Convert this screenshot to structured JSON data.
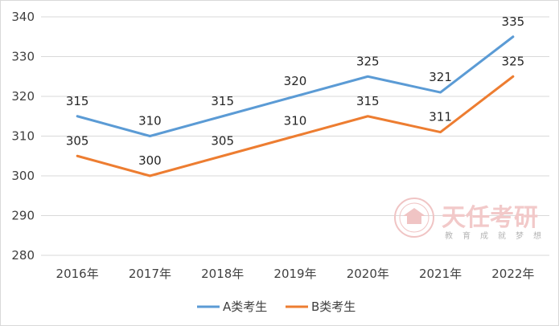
{
  "chart_data": {
    "type": "line",
    "categories": [
      "2016年",
      "2017年",
      "2018年",
      "2019年",
      "2020年",
      "2021年",
      "2022年"
    ],
    "series": [
      {
        "name": "A类考生",
        "values": [
          315,
          310,
          315,
          320,
          325,
          321,
          335
        ],
        "color": "#5b9bd5"
      },
      {
        "name": "B类考生",
        "values": [
          305,
          300,
          305,
          310,
          315,
          311,
          325
        ],
        "color": "#ed7d31"
      }
    ],
    "ylim": [
      280,
      340
    ],
    "yticks": [
      280,
      290,
      300,
      310,
      320,
      330,
      340
    ],
    "grid": true,
    "legend_position": "bottom"
  },
  "watermark": {
    "title": "天任考研",
    "slogan": [
      "教",
      "育",
      "成",
      "就",
      "梦",
      "想"
    ],
    "color": "#e8a5a5"
  }
}
